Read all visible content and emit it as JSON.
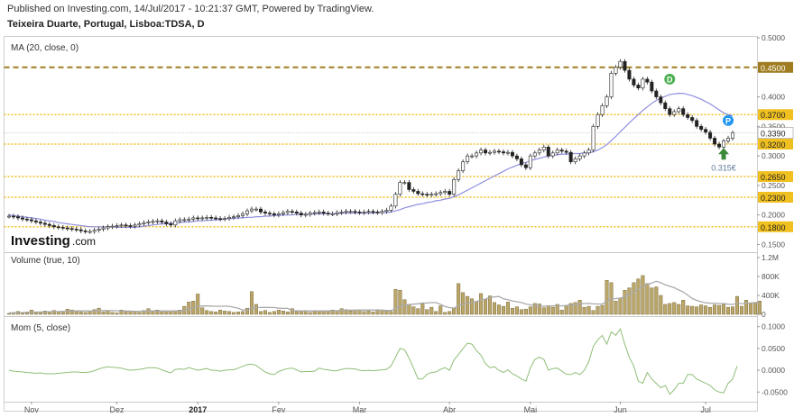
{
  "header": {
    "published": "Published on Investing.com, 14/Jul/2017 - 10:21:37 GMT, Powered by TradingView.",
    "instrument": "Teixeira Duarte, Portugal, Lisboa:TDSA, D"
  },
  "watermark": {
    "brand": "Investing",
    "suffix": ".com"
  },
  "colors": {
    "candle_up": "#ffffff",
    "candle_down": "#222222",
    "ma_line": "#8f8fe0",
    "level_gold": "#f0c020",
    "level_dark_gold": "#a07c20",
    "volume_bar": "#bba669",
    "volume_ma": "#aaaaaa",
    "momentum_line": "#8fbf78",
    "signal_d": "#4caf50",
    "signal_p": "#2196f3",
    "arrow": "#3a8a3a",
    "current_label": "#ffffff"
  },
  "chart_data": [
    {
      "type": "candlestick",
      "panel_label": "MA (20, close, 0)",
      "y_ticks": [
        "0.5000",
        "0.4500",
        "0.4000",
        "0.3700",
        "0.3500",
        "0.3390",
        "0.3200",
        "0.3000",
        "0.2650",
        "0.2500",
        "0.2300",
        "0.2000",
        "0.1800",
        "0.1500"
      ],
      "ylim": [
        0.14,
        0.5
      ],
      "x_labels": [
        "Nov",
        "Dez",
        "2017",
        "Fev",
        "Mar",
        "Abr",
        "Mai",
        "Jun",
        "Jul"
      ],
      "x_label_index": [
        5,
        24,
        42,
        60,
        78,
        98,
        116,
        136,
        155
      ],
      "levels": [
        {
          "value": 0.45,
          "label": "0.4500",
          "style": "dark"
        },
        {
          "value": 0.37,
          "label": "0.3700",
          "style": "gold"
        },
        {
          "value": 0.32,
          "label": "0.3200",
          "style": "gold"
        },
        {
          "value": 0.265,
          "label": "0.2650",
          "style": "gold"
        },
        {
          "value": 0.23,
          "label": "0.2300",
          "style": "gold"
        },
        {
          "value": 0.18,
          "label": "0.1800",
          "style": "gold"
        }
      ],
      "current_price": {
        "value": 0.339,
        "label": "0.3390"
      },
      "annotation": {
        "text": "0.315€",
        "index": 159,
        "value": 0.315
      },
      "signals": [
        {
          "text": "D",
          "index": 147,
          "value": 0.43
        },
        {
          "text": "P",
          "index": 160,
          "value": 0.36
        }
      ],
      "close": [
        0.198,
        0.197,
        0.195,
        0.193,
        0.192,
        0.19,
        0.188,
        0.186,
        0.184,
        0.182,
        0.18,
        0.179,
        0.178,
        0.177,
        0.176,
        0.175,
        0.173,
        0.172,
        0.172,
        0.174,
        0.176,
        0.178,
        0.18,
        0.181,
        0.182,
        0.183,
        0.182,
        0.181,
        0.183,
        0.185,
        0.187,
        0.188,
        0.189,
        0.19,
        0.188,
        0.185,
        0.183,
        0.19,
        0.192,
        0.192,
        0.193,
        0.195,
        0.194,
        0.195,
        0.196,
        0.195,
        0.194,
        0.193,
        0.194,
        0.196,
        0.197,
        0.199,
        0.202,
        0.207,
        0.21,
        0.21,
        0.205,
        0.203,
        0.202,
        0.2,
        0.202,
        0.204,
        0.206,
        0.205,
        0.203,
        0.2,
        0.201,
        0.203,
        0.204,
        0.205,
        0.203,
        0.202,
        0.202,
        0.204,
        0.205,
        0.206,
        0.206,
        0.205,
        0.204,
        0.205,
        0.206,
        0.205,
        0.204,
        0.206,
        0.208,
        0.215,
        0.235,
        0.255,
        0.255,
        0.243,
        0.24,
        0.236,
        0.235,
        0.234,
        0.235,
        0.236,
        0.238,
        0.24,
        0.235,
        0.26,
        0.275,
        0.29,
        0.3,
        0.3,
        0.305,
        0.31,
        0.305,
        0.306,
        0.308,
        0.307,
        0.305,
        0.306,
        0.3,
        0.295,
        0.285,
        0.28,
        0.3,
        0.305,
        0.31,
        0.315,
        0.3,
        0.305,
        0.31,
        0.308,
        0.306,
        0.29,
        0.295,
        0.3,
        0.305,
        0.31,
        0.35,
        0.37,
        0.385,
        0.4,
        0.44,
        0.45,
        0.46,
        0.445,
        0.43,
        0.42,
        0.415,
        0.43,
        0.425,
        0.41,
        0.4,
        0.39,
        0.38,
        0.37,
        0.375,
        0.38,
        0.37,
        0.365,
        0.36,
        0.35,
        0.345,
        0.34,
        0.33,
        0.32,
        0.315,
        0.325,
        0.33,
        0.339
      ],
      "ma20": [
        0.2,
        0.199,
        0.198,
        0.197,
        0.196,
        0.195,
        0.194,
        0.193,
        0.191,
        0.19,
        0.189,
        0.187,
        0.186,
        0.185,
        0.184,
        0.183,
        0.182,
        0.181,
        0.18,
        0.18,
        0.18,
        0.18,
        0.18,
        0.18,
        0.179,
        0.179,
        0.179,
        0.179,
        0.179,
        0.18,
        0.181,
        0.182,
        0.183,
        0.184,
        0.185,
        0.185,
        0.186,
        0.186,
        0.187,
        0.188,
        0.188,
        0.189,
        0.19,
        0.19,
        0.191,
        0.191,
        0.192,
        0.192,
        0.193,
        0.194,
        0.194,
        0.195,
        0.195,
        0.196,
        0.196,
        0.197,
        0.197,
        0.198,
        0.198,
        0.199,
        0.199,
        0.2,
        0.2,
        0.2,
        0.201,
        0.201,
        0.201,
        0.201,
        0.202,
        0.202,
        0.202,
        0.202,
        0.202,
        0.202,
        0.203,
        0.203,
        0.203,
        0.203,
        0.203,
        0.203,
        0.203,
        0.203,
        0.204,
        0.204,
        0.204,
        0.205,
        0.207,
        0.209,
        0.212,
        0.214,
        0.216,
        0.218,
        0.219,
        0.221,
        0.222,
        0.224,
        0.225,
        0.227,
        0.228,
        0.231,
        0.234,
        0.238,
        0.242,
        0.246,
        0.25,
        0.254,
        0.258,
        0.262,
        0.266,
        0.27,
        0.274,
        0.278,
        0.281,
        0.284,
        0.287,
        0.289,
        0.292,
        0.294,
        0.296,
        0.298,
        0.3,
        0.301,
        0.302,
        0.303,
        0.303,
        0.304,
        0.304,
        0.304,
        0.305,
        0.305,
        0.307,
        0.31,
        0.314,
        0.319,
        0.326,
        0.333,
        0.341,
        0.348,
        0.356,
        0.363,
        0.37,
        0.377,
        0.383,
        0.389,
        0.394,
        0.398,
        0.401,
        0.404,
        0.405,
        0.406,
        0.406,
        0.404,
        0.402,
        0.399,
        0.396,
        0.392,
        0.388,
        0.383,
        0.378,
        0.373,
        0.37,
        0.368
      ]
    },
    {
      "type": "bar",
      "panel_label": "Volume (true, 10)",
      "y_ticks": [
        "1.2M",
        "800K",
        "400K",
        "0"
      ],
      "ylim": [
        0,
        1200
      ],
      "values": [
        20,
        40,
        60,
        30,
        50,
        90,
        40,
        30,
        70,
        50,
        80,
        60,
        40,
        110,
        90,
        70,
        50,
        40,
        60,
        100,
        130,
        50,
        70,
        40,
        30,
        90,
        50,
        60,
        70,
        40,
        80,
        120,
        60,
        90,
        50,
        70,
        60,
        80,
        90,
        170,
        260,
        280,
        430,
        140,
        80,
        60,
        50,
        90,
        70,
        60,
        40,
        50,
        60,
        130,
        480,
        210,
        60,
        80,
        40,
        60,
        90,
        70,
        50,
        120,
        60,
        60,
        80,
        40,
        60,
        70,
        60,
        60,
        90,
        80,
        120,
        100,
        70,
        80,
        90,
        60,
        70,
        50,
        100,
        80,
        70,
        60,
        530,
        510,
        310,
        200,
        160,
        120,
        220,
        100,
        150,
        60,
        180,
        40,
        60,
        130,
        650,
        460,
        380,
        330,
        270,
        440,
        320,
        390,
        250,
        200,
        170,
        260,
        130,
        160,
        100,
        110,
        160,
        230,
        220,
        140,
        170,
        150,
        210,
        90,
        190,
        230,
        250,
        300,
        150,
        170,
        80,
        170,
        190,
        720,
        670,
        280,
        340,
        510,
        560,
        670,
        750,
        820,
        650,
        560,
        580,
        400,
        210,
        230,
        250,
        210,
        300,
        180,
        170,
        160,
        200,
        180,
        150,
        200,
        190,
        210,
        150,
        160,
        380,
        170,
        300,
        230,
        240,
        280
      ],
      "ma10": [
        30,
        32,
        35,
        38,
        40,
        45,
        47,
        49,
        52,
        55,
        58,
        60,
        62,
        66,
        70,
        72,
        73,
        72,
        70,
        72,
        78,
        80,
        80,
        78,
        75,
        74,
        70,
        68,
        65,
        64,
        66,
        70,
        72,
        74,
        72,
        70,
        70,
        73,
        76,
        90,
        112,
        135,
        170,
        178,
        178,
        175,
        170,
        172,
        172,
        170,
        150,
        128,
        92,
        88,
        128,
        143,
        144,
        146,
        144,
        145,
        130,
        126,
        125,
        80,
        75,
        73,
        75,
        71,
        73,
        75,
        73,
        73,
        74,
        78,
        85,
        88,
        87,
        90,
        93,
        92,
        92,
        89,
        89,
        89,
        84,
        80,
        126,
        170,
        194,
        206,
        216,
        222,
        238,
        240,
        248,
        248,
        213,
        166,
        141,
        134,
        184,
        218,
        238,
        258,
        270,
        308,
        321,
        356,
        370,
        377,
        329,
        309,
        284,
        267,
        250,
        217,
        201,
        185,
        182,
        171,
        178,
        177,
        185,
        179,
        186,
        198,
        207,
        222,
        228,
        231,
        220,
        219,
        217,
        273,
        321,
        333,
        342,
        378,
        415,
        465,
        521,
        586,
        632,
        661,
        700,
        668,
        622,
        594,
        563,
        517,
        472,
        408,
        335,
        296,
        265,
        243,
        237,
        234,
        228,
        228,
        213,
        210,
        231,
        227,
        235,
        240,
        249,
        256
      ]
    },
    {
      "type": "line",
      "panel_label": "Mom (5, close)",
      "y_ticks": [
        "0.1000",
        "0.0500",
        "0.0000",
        "-0.0500"
      ],
      "ylim": [
        -0.068,
        0.118
      ],
      "values": [
        0.0,
        -0.002,
        -0.003,
        -0.004,
        -0.005,
        -0.006,
        -0.007,
        -0.006,
        -0.008,
        -0.008,
        -0.008,
        -0.007,
        -0.006,
        -0.005,
        -0.004,
        -0.004,
        -0.005,
        -0.005,
        -0.004,
        -0.001,
        0.003,
        0.006,
        0.008,
        0.007,
        0.006,
        0.005,
        0.002,
        0.0,
        0.001,
        0.002,
        0.004,
        0.006,
        0.006,
        0.005,
        0.001,
        -0.003,
        -0.006,
        0.002,
        0.003,
        0.002,
        0.006,
        0.003,
        0.0,
        0.002,
        0.004,
        0.0,
        0.0,
        -0.002,
        0.0,
        0.001,
        0.001,
        0.005,
        0.009,
        0.013,
        0.014,
        0.011,
        0.003,
        -0.004,
        -0.008,
        -0.01,
        -0.003,
        0.001,
        0.004,
        0.005,
        0.001,
        -0.004,
        -0.003,
        -0.003,
        -0.002,
        0.005,
        0.002,
        0.001,
        -0.001,
        -0.001,
        0.002,
        0.004,
        0.004,
        0.003,
        0.0,
        -0.001,
        0.0,
        -0.001,
        0.0,
        0.001,
        0.002,
        0.01,
        0.03,
        0.05,
        0.047,
        0.028,
        0.005,
        -0.02,
        -0.02,
        -0.009,
        -0.005,
        -0.004,
        0.002,
        0.006,
        0.0,
        0.024,
        0.036,
        0.05,
        0.062,
        0.06,
        0.045,
        0.035,
        0.015,
        0.006,
        0.008,
        0.0,
        -0.005,
        0.001,
        -0.008,
        -0.013,
        -0.02,
        -0.025,
        0.005,
        0.025,
        0.03,
        0.025,
        0.0,
        0.004,
        0.005,
        -0.002,
        -0.009,
        -0.01,
        -0.005,
        -0.01,
        0.0,
        0.02,
        0.055,
        0.07,
        0.08,
        0.06,
        0.088,
        0.08,
        0.095,
        0.06,
        0.03,
        0.01,
        -0.025,
        -0.03,
        -0.005,
        -0.02,
        -0.03,
        -0.04,
        -0.035,
        -0.055,
        -0.045,
        -0.03,
        -0.03,
        -0.01,
        -0.01,
        -0.02,
        -0.025,
        -0.03,
        -0.035,
        -0.045,
        -0.05,
        -0.052,
        -0.03,
        -0.02,
        0.01
      ]
    }
  ]
}
